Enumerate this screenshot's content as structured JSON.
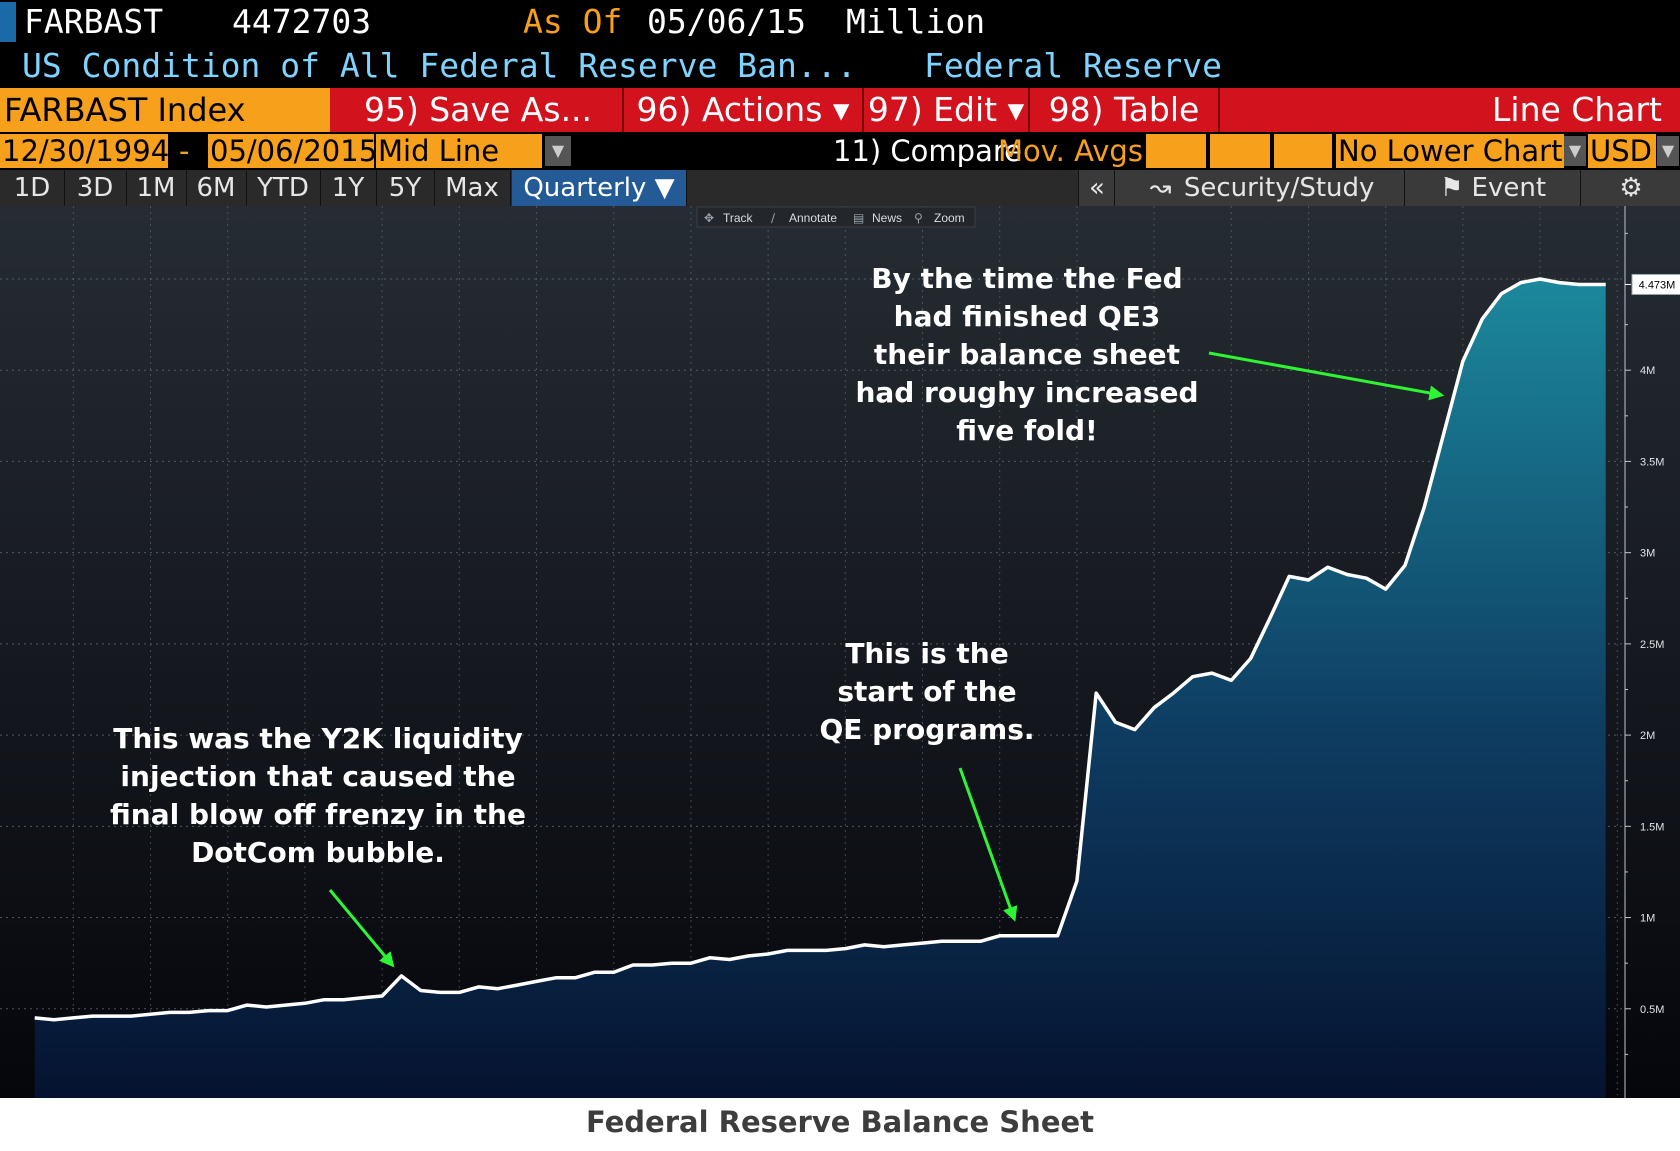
{
  "header": {
    "ticker": "FARBAST",
    "last_value": "4472703",
    "as_of_label": "As Of",
    "as_of_date": "05/06/15",
    "units": "Million",
    "description": "US Condition of All Federal Reserve Ban...",
    "source": "Federal Reserve"
  },
  "toolbar": {
    "index_label": "FARBAST Index",
    "save_as": "95) Save As...",
    "actions": "96) Actions ▾",
    "edit": "97) Edit ▾",
    "table": "98) Table",
    "chart_type": "Line Chart"
  },
  "range_bar": {
    "start_date": "12/30/1994",
    "separator": "-",
    "end_date": "05/06/2015",
    "line_style": "Mid Line",
    "compare": "11) Compare",
    "mov_avgs": "Mov. Avgs",
    "lower_chart": "No Lower Chart",
    "currency": "USD"
  },
  "period_tabs": [
    "1D",
    "3D",
    "1M",
    "6M",
    "YTD",
    "1Y",
    "5Y",
    "Max",
    "Quarterly ▼"
  ],
  "right_buttons": {
    "collapse": "«",
    "security_study": "Security/Study",
    "event": "Event"
  },
  "mini_toolbar": [
    "Track",
    "Annotate",
    "News",
    "Zoom"
  ],
  "colors": {
    "header_bg": "#000000",
    "orange": "#f7a01c",
    "red": "#d2121d",
    "selected_tab": "#245b97",
    "arrow_green": "#2ef533",
    "area_top": "#1c8a9e",
    "area_bottom": "#05122f"
  },
  "caption": "Federal Reserve Balance Sheet",
  "chart_data": {
    "type": "area",
    "x": [
      1995.0,
      1995.25,
      1995.5,
      1995.75,
      1996.0,
      1996.25,
      1996.5,
      1996.75,
      1997.0,
      1997.25,
      1997.5,
      1997.75,
      1998.0,
      1998.25,
      1998.5,
      1998.75,
      1999.0,
      1999.25,
      1999.5,
      1999.75,
      2000.0,
      2000.25,
      2000.5,
      2000.75,
      2001.0,
      2001.25,
      2001.5,
      2001.75,
      2002.0,
      2002.25,
      2002.5,
      2002.75,
      2003.0,
      2003.25,
      2003.5,
      2003.75,
      2004.0,
      2004.25,
      2004.5,
      2004.75,
      2005.0,
      2005.25,
      2005.5,
      2005.75,
      2006.0,
      2006.25,
      2006.5,
      2006.75,
      2007.0,
      2007.25,
      2007.5,
      2007.75,
      2008.0,
      2008.25,
      2008.5,
      2008.75,
      2009.0,
      2009.25,
      2009.5,
      2009.75,
      2010.0,
      2010.25,
      2010.5,
      2010.75,
      2011.0,
      2011.25,
      2011.5,
      2011.75,
      2012.0,
      2012.25,
      2012.5,
      2012.75,
      2013.0,
      2013.25,
      2013.5,
      2013.75,
      2014.0,
      2014.25,
      2014.5,
      2014.75,
      2015.0,
      2015.35
    ],
    "values": [
      0.45,
      0.44,
      0.45,
      0.46,
      0.46,
      0.46,
      0.47,
      0.48,
      0.48,
      0.49,
      0.49,
      0.52,
      0.51,
      0.52,
      0.53,
      0.55,
      0.55,
      0.56,
      0.57,
      0.68,
      0.6,
      0.59,
      0.59,
      0.62,
      0.61,
      0.63,
      0.65,
      0.67,
      0.67,
      0.7,
      0.7,
      0.74,
      0.74,
      0.75,
      0.75,
      0.78,
      0.77,
      0.79,
      0.8,
      0.82,
      0.82,
      0.82,
      0.83,
      0.85,
      0.84,
      0.85,
      0.86,
      0.87,
      0.87,
      0.87,
      0.9,
      0.9,
      0.9,
      0.9,
      1.2,
      2.23,
      2.07,
      2.03,
      2.15,
      2.23,
      2.32,
      2.34,
      2.3,
      2.42,
      2.64,
      2.87,
      2.85,
      2.92,
      2.88,
      2.86,
      2.8,
      2.93,
      3.25,
      3.65,
      4.05,
      4.28,
      4.42,
      4.48,
      4.5,
      4.48,
      4.47,
      4.47
    ],
    "xlim": [
      1994.55,
      2015.6
    ],
    "ylim": [
      0,
      4.9
    ],
    "x_ticks": [
      "1995",
      "1996",
      "1997",
      "1998",
      "1999",
      "2000",
      "2001",
      "2002",
      "2003",
      "2004",
      "2005",
      "2006",
      "2007",
      "2008",
      "2009",
      "2010",
      "2011",
      "2012",
      "2013",
      "2014",
      "2015"
    ],
    "y_ticks": [
      0.5,
      1,
      1.5,
      2,
      2.5,
      3,
      3.5,
      4
    ],
    "y_tick_labels": [
      "0.5M",
      "1M",
      "1.5M",
      "2M",
      "2.5M",
      "3M",
      "3.5M",
      "4M"
    ],
    "last_label": "4.473M",
    "grid": true,
    "annotations": [
      {
        "name": "y2k",
        "lines": [
          "This was the Y2K liquidity",
          "injection that caused the",
          "final blow off frenzy in the",
          "DotCom bubble."
        ],
        "target_x": 1999.75,
        "target_y": 0.68
      },
      {
        "name": "qe-start",
        "lines": [
          "This is the",
          "start of the",
          "QE programs."
        ],
        "target_x": 2007.75,
        "target_y": 0.92
      },
      {
        "name": "qe3",
        "lines": [
          "By the time the Fed",
          "had finished QE3",
          "their balance sheet",
          "had roughy increased",
          "five fold!"
        ],
        "target_x": 2013.4,
        "target_y": 3.85
      }
    ]
  }
}
